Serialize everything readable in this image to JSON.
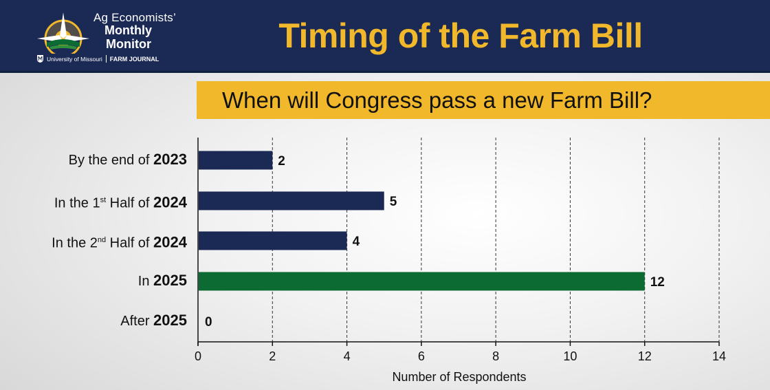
{
  "header": {
    "logo": {
      "line1": "Ag Economists’",
      "line2": "Monthly",
      "line3": "Monitor",
      "partner1": "University of Missouri",
      "partner2": "FARM JOURNAL"
    },
    "title": "Timing of the Farm Bill"
  },
  "question": "When will Congress pass a new Farm Bill?",
  "colors": {
    "navy": "#1b2a55",
    "gold": "#f0b82a",
    "bar_default": "#1b2a55",
    "bar_highlight": "#0b6b33"
  },
  "chart_data": {
    "type": "bar",
    "orientation": "horizontal",
    "title": "When will Congress pass a new Farm Bill?",
    "xlabel": "Number of Respondents",
    "ylabel": "",
    "xlim": [
      0,
      14
    ],
    "xticks": [
      0,
      2,
      4,
      6,
      8,
      10,
      12,
      14
    ],
    "grid": "vertical dashed",
    "categories": [
      {
        "prefix": "By the end of ",
        "sup": "",
        "suffix": "",
        "year": "2023"
      },
      {
        "prefix": "In the 1",
        "sup": "st",
        "suffix": " Half of ",
        "year": "2024"
      },
      {
        "prefix": "In the 2",
        "sup": "nd",
        "suffix": " Half of ",
        "year": "2024"
      },
      {
        "prefix": "In ",
        "sup": "",
        "suffix": "",
        "year": "2025"
      },
      {
        "prefix": "After ",
        "sup": "",
        "suffix": "",
        "year": "2025"
      }
    ],
    "values": [
      2,
      5,
      4,
      12,
      0
    ],
    "highlight_index": 3
  }
}
